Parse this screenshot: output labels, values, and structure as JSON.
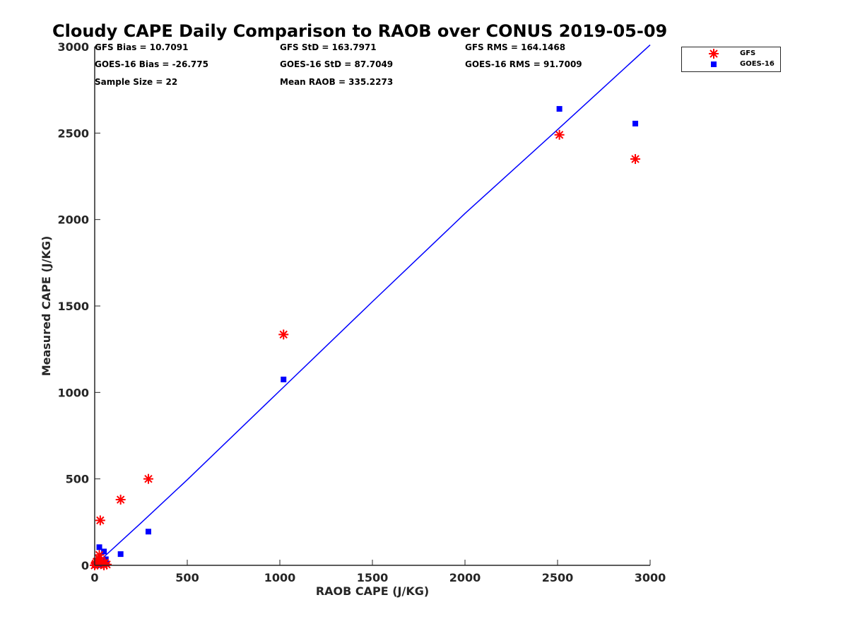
{
  "title": "Cloudy CAPE Daily Comparison to RAOB over CONUS 2019-05-09",
  "stats": {
    "gfs_bias": "GFS Bias = 10.7091",
    "gfs_std": "GFS StD = 163.7971",
    "gfs_rms": "GFS RMS = 164.1468",
    "goes_bias": "GOES-16 Bias = -26.775",
    "goes_std": "GOES-16 StD = 87.7049",
    "goes_rms": "GOES-16 RMS = 91.7009",
    "sample_size": "Sample Size = 22",
    "mean_raob": "Mean RAOB = 335.2273"
  },
  "colors": {
    "gfs": "#ff0000",
    "goes16": "#0000ff",
    "fit_line": "#0000ff",
    "axis": "#262626"
  },
  "chart_data": {
    "type": "scatter",
    "title": "Cloudy CAPE Daily Comparison to RAOB over CONUS 2019-05-09",
    "xlabel": "RAOB CAPE (J/KG)",
    "ylabel": "Measured CAPE (J/KG)",
    "xlim": [
      0,
      3000
    ],
    "ylim": [
      0,
      3000
    ],
    "xticks": [
      "0",
      "500",
      "1000",
      "1500",
      "2000",
      "2500",
      "3000"
    ],
    "yticks": [
      "0",
      "500",
      "1000",
      "1500",
      "2000",
      "2500",
      "3000"
    ],
    "grid": false,
    "legend_position": "top-right outside",
    "series": [
      {
        "name": "GFS",
        "marker": "asterisk",
        "points": [
          [
            0,
            0
          ],
          [
            5,
            10
          ],
          [
            10,
            20
          ],
          [
            15,
            5
          ],
          [
            20,
            40
          ],
          [
            25,
            60
          ],
          [
            30,
            260
          ],
          [
            35,
            30
          ],
          [
            40,
            10
          ],
          [
            50,
            0
          ],
          [
            55,
            15
          ],
          [
            65,
            5
          ],
          [
            140,
            380
          ],
          [
            290,
            500
          ],
          [
            1020,
            1335
          ],
          [
            2510,
            2490
          ],
          [
            2920,
            2350
          ]
        ]
      },
      {
        "name": "GOES-16",
        "marker": "square",
        "points": [
          [
            0,
            0
          ],
          [
            5,
            10
          ],
          [
            10,
            0
          ],
          [
            15,
            20
          ],
          [
            20,
            30
          ],
          [
            25,
            105
          ],
          [
            30,
            15
          ],
          [
            40,
            5
          ],
          [
            50,
            80
          ],
          [
            60,
            35
          ],
          [
            65,
            10
          ],
          [
            140,
            65
          ],
          [
            290,
            195
          ],
          [
            1020,
            1075
          ],
          [
            2510,
            2640
          ],
          [
            2920,
            2555
          ]
        ]
      }
    ],
    "fit_line": {
      "x": [
        0,
        250,
        500,
        1000,
        1500,
        2000,
        2500,
        3000
      ],
      "y": [
        0,
        245,
        495,
        1010,
        1525,
        2035,
        2520,
        3010
      ]
    }
  }
}
